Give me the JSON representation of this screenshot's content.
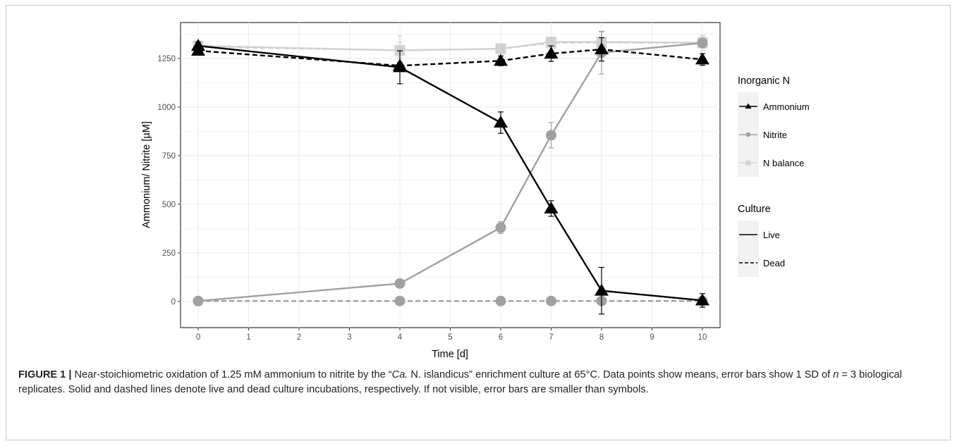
{
  "chart_data": {
    "type": "line",
    "xlabel": "Time [d]",
    "ylabel": "Ammonium/ Nitrite [µM]",
    "xlim": [
      -0.35,
      10.35
    ],
    "ylim": [
      -135,
      1435
    ],
    "x_ticks": [
      0,
      1,
      2,
      3,
      4,
      5,
      6,
      7,
      8,
      9,
      10
    ],
    "y_ticks": [
      0,
      250,
      500,
      750,
      1000,
      1250
    ],
    "grid": true,
    "legend": [
      {
        "title": "Inorganic N",
        "entries": [
          {
            "label": "Ammonium",
            "color": "#000000",
            "shape": "triangle"
          },
          {
            "label": "Nitrite",
            "color": "#a0a0a0",
            "shape": "circle"
          },
          {
            "label": "N balance",
            "color": "#d2d2d2",
            "shape": "square"
          }
        ]
      },
      {
        "title": "Culture",
        "entries": [
          {
            "label": "Live",
            "linetype": "solid"
          },
          {
            "label": "Dead",
            "linetype": "dashed"
          }
        ]
      }
    ],
    "series": [
      {
        "name": "N balance",
        "culture": "Dead",
        "color": "#d2d2d2",
        "shape": "square",
        "dashed": true,
        "x": [
          0,
          4,
          6,
          7,
          8,
          10
        ],
        "y": [
          1310,
          1292,
          1300,
          1330,
          1332,
          1330
        ],
        "sd": [
          10,
          75,
          10,
          15,
          55,
          40
        ]
      },
      {
        "name": "N balance",
        "culture": "Live",
        "color": "#d2d2d2",
        "shape": "square",
        "dashed": false,
        "x": [
          0,
          4,
          6,
          7,
          8,
          10
        ],
        "y": [
          1315,
          1292,
          1300,
          1335,
          1335,
          1332
        ],
        "sd": [
          15,
          40,
          20,
          20,
          50,
          30
        ]
      },
      {
        "name": "Nitrite",
        "culture": "Dead",
        "color": "#a0a0a0",
        "shape": "circle",
        "dashed": true,
        "x": [
          0,
          4,
          6,
          7,
          8,
          10
        ],
        "y": [
          2,
          2,
          2,
          2,
          2,
          2
        ],
        "sd": [
          0,
          0,
          0,
          0,
          0,
          0
        ]
      },
      {
        "name": "Nitrite",
        "culture": "Live",
        "color": "#a0a0a0",
        "shape": "circle",
        "dashed": false,
        "x": [
          0,
          4,
          6,
          7,
          8,
          10
        ],
        "y": [
          2,
          92,
          380,
          855,
          1280,
          1330
        ],
        "sd": [
          0,
          10,
          30,
          65,
          110,
          20
        ]
      },
      {
        "name": "Ammonium",
        "culture": "Dead",
        "color": "#000000",
        "shape": "triangle",
        "dashed": true,
        "x": [
          0,
          4,
          6,
          7,
          8,
          10
        ],
        "y": [
          1290,
          1213,
          1238,
          1275,
          1297,
          1245
        ],
        "sd": [
          15,
          15,
          25,
          40,
          60,
          30
        ]
      },
      {
        "name": "Ammonium",
        "culture": "Live",
        "color": "#000000",
        "shape": "triangle",
        "dashed": false,
        "x": [
          0,
          4,
          6,
          7,
          8,
          10
        ],
        "y": [
          1315,
          1205,
          920,
          478,
          55,
          5
        ],
        "sd": [
          20,
          85,
          55,
          40,
          120,
          35
        ]
      }
    ]
  },
  "caption": {
    "lead": "FIGURE 1 |",
    "part1": " Near-stoichiometric oxidation of 1.25 mM ammonium to nitrite by the “",
    "italic_org": "Ca.",
    "part2": " N. islandicus” enrichment culture at 65°C. Data points show means, error bars show 1 SD of ",
    "italic_n": "n",
    "part3": " = 3 biological replicates. Solid and dashed lines denote live and dead culture incubations, respectively. If not visible, error bars are smaller than symbols."
  }
}
